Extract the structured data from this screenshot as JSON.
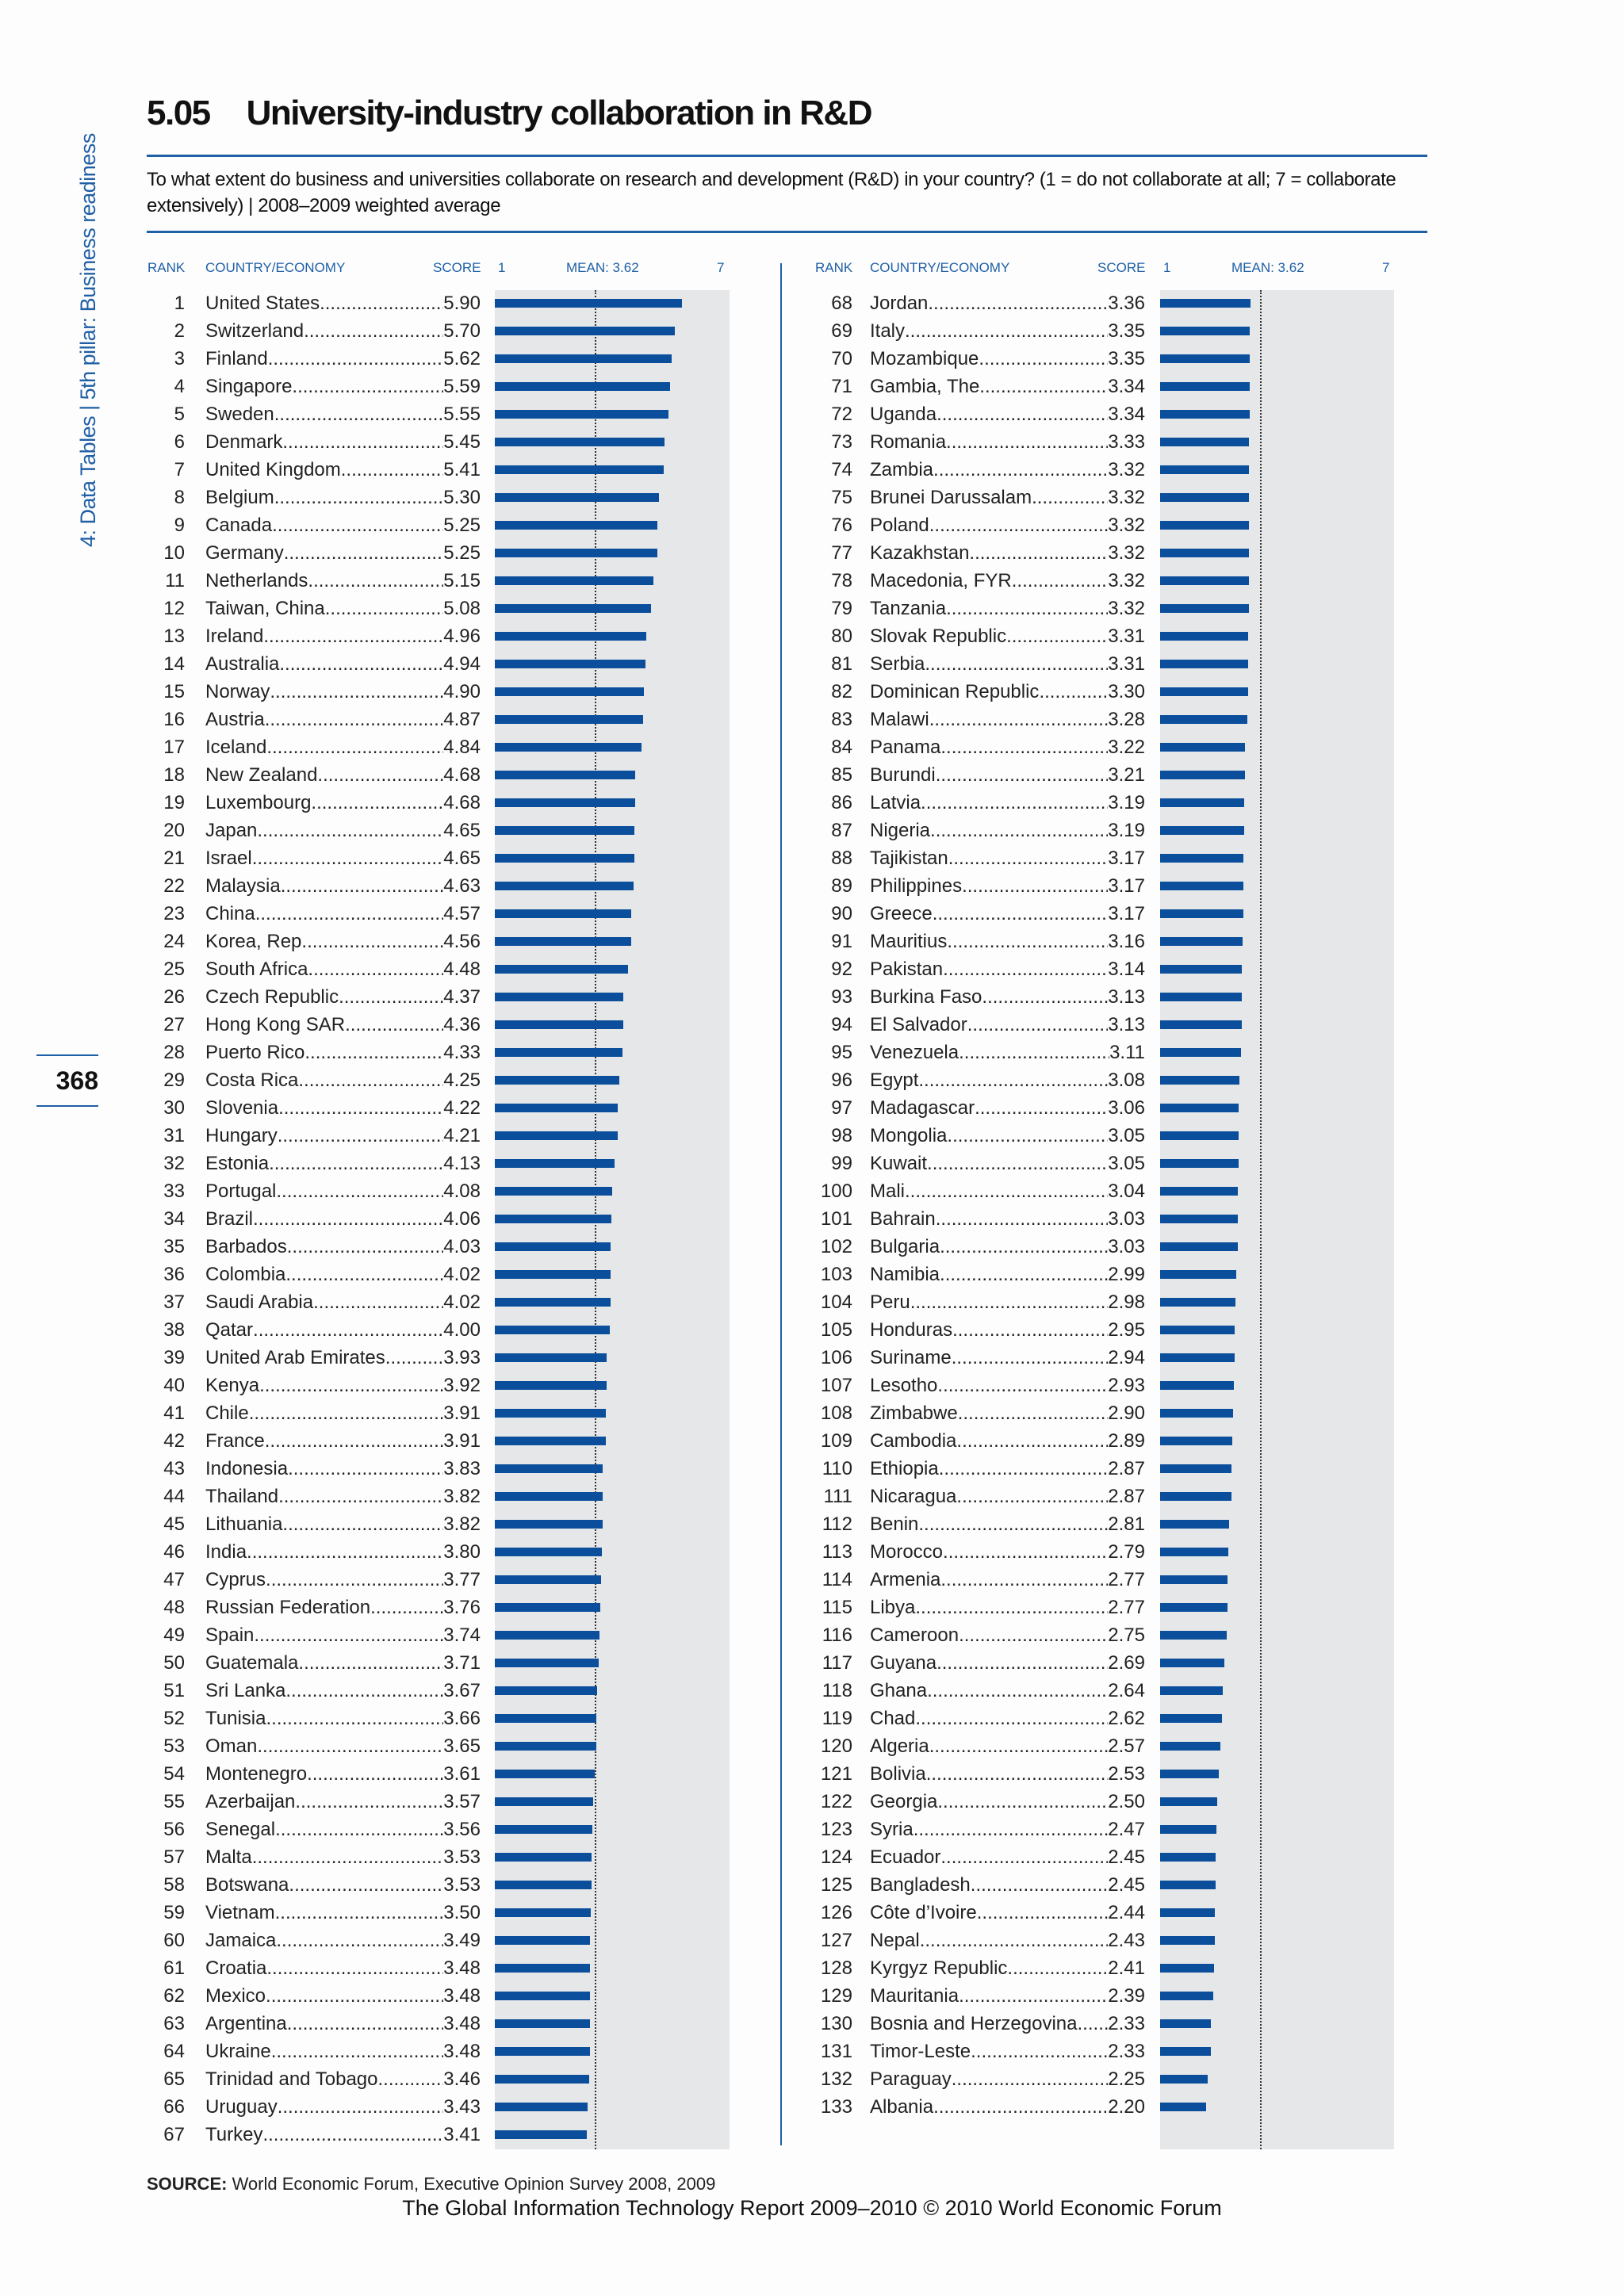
{
  "sidebar": {
    "text": "4: Data Tables  |  5th pillar: Business readiness",
    "page_number": "368"
  },
  "header": {
    "number": "5.05",
    "title": "University-industry collaboration in R&D",
    "subtitle": "To what extent do business and universities collaborate on research and development (R&D) in your country? (1 = do not collaborate at all; 7 = collaborate extensively)  |  2008–2009 weighted average"
  },
  "columns": {
    "rank": "RANK",
    "country": "COUNTRY/ECONOMY",
    "score": "SCORE",
    "min": "1",
    "mean": "MEAN: 3.62",
    "max": "7"
  },
  "source": {
    "label": "SOURCE:",
    "text": " World Economic Forum, Executive Opinion Survey 2008, 2009"
  },
  "footer": "The Global Information Technology Report 2009–2010 © 2010 World Economic Forum",
  "colors": {
    "bar": "#0b4f9c",
    "accent": "#1f5fa6",
    "track": "#e6e7e8"
  },
  "chart_data": {
    "type": "bar",
    "title": "University-industry collaboration in R&D",
    "xlim": [
      1,
      7
    ],
    "mean": 3.62,
    "rows": [
      [
        1,
        "United States",
        "5.90"
      ],
      [
        2,
        "Switzerland",
        "5.70"
      ],
      [
        3,
        "Finland",
        "5.62"
      ],
      [
        4,
        "Singapore",
        "5.59"
      ],
      [
        5,
        "Sweden",
        "5.55"
      ],
      [
        6,
        "Denmark",
        "5.45"
      ],
      [
        7,
        "United Kingdom",
        "5.41"
      ],
      [
        8,
        "Belgium",
        "5.30"
      ],
      [
        9,
        "Canada",
        "5.25"
      ],
      [
        10,
        "Germany",
        "5.25"
      ],
      [
        11,
        "Netherlands",
        "5.15"
      ],
      [
        12,
        "Taiwan, China",
        "5.08"
      ],
      [
        13,
        "Ireland",
        "4.96"
      ],
      [
        14,
        "Australia",
        "4.94"
      ],
      [
        15,
        "Norway",
        "4.90"
      ],
      [
        16,
        "Austria",
        "4.87"
      ],
      [
        17,
        "Iceland",
        "4.84"
      ],
      [
        18,
        "New Zealand",
        "4.68"
      ],
      [
        19,
        "Luxembourg",
        "4.68"
      ],
      [
        20,
        "Japan",
        "4.65"
      ],
      [
        21,
        "Israel",
        "4.65"
      ],
      [
        22,
        "Malaysia",
        "4.63"
      ],
      [
        23,
        "China",
        "4.57"
      ],
      [
        24,
        "Korea, Rep.",
        "4.56"
      ],
      [
        25,
        "South Africa",
        "4.48"
      ],
      [
        26,
        "Czech Republic",
        "4.37"
      ],
      [
        27,
        "Hong Kong SAR",
        "4.36"
      ],
      [
        28,
        "Puerto Rico",
        "4.33"
      ],
      [
        29,
        "Costa Rica",
        "4.25"
      ],
      [
        30,
        "Slovenia",
        "4.22"
      ],
      [
        31,
        "Hungary",
        "4.21"
      ],
      [
        32,
        "Estonia",
        "4.13"
      ],
      [
        33,
        "Portugal",
        "4.08"
      ],
      [
        34,
        "Brazil",
        "4.06"
      ],
      [
        35,
        "Barbados",
        "4.03"
      ],
      [
        36,
        "Colombia",
        "4.02"
      ],
      [
        37,
        "Saudi Arabia",
        "4.02"
      ],
      [
        38,
        "Qatar",
        "4.00"
      ],
      [
        39,
        "United Arab Emirates",
        "3.93"
      ],
      [
        40,
        "Kenya",
        "3.92"
      ],
      [
        41,
        "Chile",
        "3.91"
      ],
      [
        42,
        "France",
        "3.91"
      ],
      [
        43,
        "Indonesia",
        "3.83"
      ],
      [
        44,
        "Thailand",
        "3.82"
      ],
      [
        45,
        "Lithuania",
        "3.82"
      ],
      [
        46,
        "India",
        "3.80"
      ],
      [
        47,
        "Cyprus",
        "3.77"
      ],
      [
        48,
        "Russian Federation",
        "3.76"
      ],
      [
        49,
        "Spain",
        "3.74"
      ],
      [
        50,
        "Guatemala",
        "3.71"
      ],
      [
        51,
        "Sri Lanka",
        "3.67"
      ],
      [
        52,
        "Tunisia",
        "3.66"
      ],
      [
        53,
        "Oman",
        "3.65"
      ],
      [
        54,
        "Montenegro",
        "3.61"
      ],
      [
        55,
        "Azerbaijan",
        "3.57"
      ],
      [
        56,
        "Senegal",
        "3.56"
      ],
      [
        57,
        "Malta",
        "3.53"
      ],
      [
        58,
        "Botswana",
        "3.53"
      ],
      [
        59,
        "Vietnam",
        "3.50"
      ],
      [
        60,
        "Jamaica",
        "3.49"
      ],
      [
        61,
        "Croatia",
        "3.48"
      ],
      [
        62,
        "Mexico",
        "3.48"
      ],
      [
        63,
        "Argentina",
        "3.48"
      ],
      [
        64,
        "Ukraine",
        "3.48"
      ],
      [
        65,
        "Trinidad and Tobago",
        "3.46"
      ],
      [
        66,
        "Uruguay",
        "3.43"
      ],
      [
        67,
        "Turkey",
        "3.41"
      ],
      [
        68,
        "Jordan",
        "3.36"
      ],
      [
        69,
        "Italy",
        "3.35"
      ],
      [
        70,
        "Mozambique",
        "3.35"
      ],
      [
        71,
        "Gambia, The",
        "3.34"
      ],
      [
        72,
        "Uganda",
        "3.34"
      ],
      [
        73,
        "Romania",
        "3.33"
      ],
      [
        74,
        "Zambia",
        "3.32"
      ],
      [
        75,
        "Brunei Darussalam",
        "3.32"
      ],
      [
        76,
        "Poland",
        "3.32"
      ],
      [
        77,
        "Kazakhstan",
        "3.32"
      ],
      [
        78,
        "Macedonia, FYR",
        "3.32"
      ],
      [
        79,
        "Tanzania",
        "3.32"
      ],
      [
        80,
        "Slovak Republic",
        "3.31"
      ],
      [
        81,
        "Serbia",
        "3.31"
      ],
      [
        82,
        "Dominican Republic",
        "3.30"
      ],
      [
        83,
        "Malawi",
        "3.28"
      ],
      [
        84,
        "Panama",
        "3.22"
      ],
      [
        85,
        "Burundi",
        "3.21"
      ],
      [
        86,
        "Latvia",
        "3.19"
      ],
      [
        87,
        "Nigeria",
        "3.19"
      ],
      [
        88,
        "Tajikistan",
        "3.17"
      ],
      [
        89,
        "Philippines",
        "3.17"
      ],
      [
        90,
        "Greece",
        "3.17"
      ],
      [
        91,
        "Mauritius",
        "3.16"
      ],
      [
        92,
        "Pakistan",
        "3.14"
      ],
      [
        93,
        "Burkina Faso",
        "3.13"
      ],
      [
        94,
        "El Salvador",
        "3.13"
      ],
      [
        95,
        "Venezuela",
        "3.11"
      ],
      [
        96,
        "Egypt",
        "3.08"
      ],
      [
        97,
        "Madagascar",
        "3.06"
      ],
      [
        98,
        "Mongolia",
        "3.05"
      ],
      [
        99,
        "Kuwait",
        "3.05"
      ],
      [
        100,
        "Mali",
        "3.04"
      ],
      [
        101,
        "Bahrain",
        "3.03"
      ],
      [
        102,
        "Bulgaria",
        "3.03"
      ],
      [
        103,
        "Namibia",
        "2.99"
      ],
      [
        104,
        "Peru",
        "2.98"
      ],
      [
        105,
        "Honduras",
        "2.95"
      ],
      [
        106,
        "Suriname",
        "2.94"
      ],
      [
        107,
        "Lesotho",
        "2.93"
      ],
      [
        108,
        "Zimbabwe",
        "2.90"
      ],
      [
        109,
        "Cambodia",
        "2.89"
      ],
      [
        110,
        "Ethiopia",
        "2.87"
      ],
      [
        111,
        "Nicaragua",
        "2.87"
      ],
      [
        112,
        "Benin",
        "2.81"
      ],
      [
        113,
        "Morocco",
        "2.79"
      ],
      [
        114,
        "Armenia",
        "2.77"
      ],
      [
        115,
        "Libya",
        "2.77"
      ],
      [
        116,
        "Cameroon",
        "2.75"
      ],
      [
        117,
        "Guyana",
        "2.69"
      ],
      [
        118,
        "Ghana",
        "2.64"
      ],
      [
        119,
        "Chad",
        "2.62"
      ],
      [
        120,
        "Algeria",
        "2.57"
      ],
      [
        121,
        "Bolivia",
        "2.53"
      ],
      [
        122,
        "Georgia",
        "2.50"
      ],
      [
        123,
        "Syria",
        "2.47"
      ],
      [
        124,
        "Ecuador",
        "2.45"
      ],
      [
        125,
        "Bangladesh",
        "2.45"
      ],
      [
        126,
        "Côte d’Ivoire",
        "2.44"
      ],
      [
        127,
        "Nepal",
        "2.43"
      ],
      [
        128,
        "Kyrgyz Republic",
        "2.41"
      ],
      [
        129,
        "Mauritania",
        "2.39"
      ],
      [
        130,
        "Bosnia and Herzegovina",
        "2.33"
      ],
      [
        131,
        "Timor-Leste",
        "2.33"
      ],
      [
        132,
        "Paraguay",
        "2.25"
      ],
      [
        133,
        "Albania",
        "2.20"
      ]
    ]
  }
}
